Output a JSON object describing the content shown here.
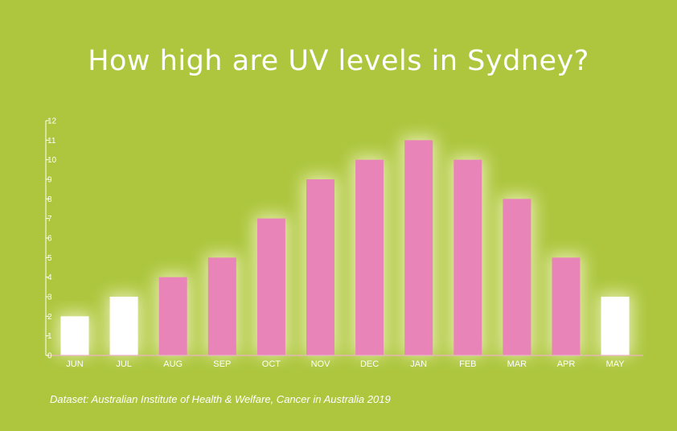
{
  "chart_data": {
    "type": "bar",
    "title": "How high are UV levels in Sydney?",
    "categories": [
      "JUN",
      "JUL",
      "AUG",
      "SEP",
      "OCT",
      "NOV",
      "DEC",
      "JAN",
      "FEB",
      "MAR",
      "APR",
      "MAY"
    ],
    "values": [
      2,
      3,
      4,
      5,
      7,
      9,
      10,
      11,
      10,
      8,
      5,
      3
    ],
    "ylim": [
      0,
      12
    ],
    "yticks": [
      "0",
      "1",
      "2",
      "3",
      "4",
      "5",
      "6",
      "7",
      "8",
      "9",
      "10",
      "11",
      "12"
    ],
    "bar_colors": [
      "#ffffff",
      "#ffffff",
      "#e984b8",
      "#e984b8",
      "#e984b8",
      "#e984b8",
      "#e984b8",
      "#e984b8",
      "#e984b8",
      "#e984b8",
      "#e984b8",
      "#ffffff"
    ],
    "background": "#adc63e",
    "grid": false,
    "legend": "none"
  },
  "source": "Dataset: Australian Institute of Health & Welfare, Cancer in Australia 2019"
}
